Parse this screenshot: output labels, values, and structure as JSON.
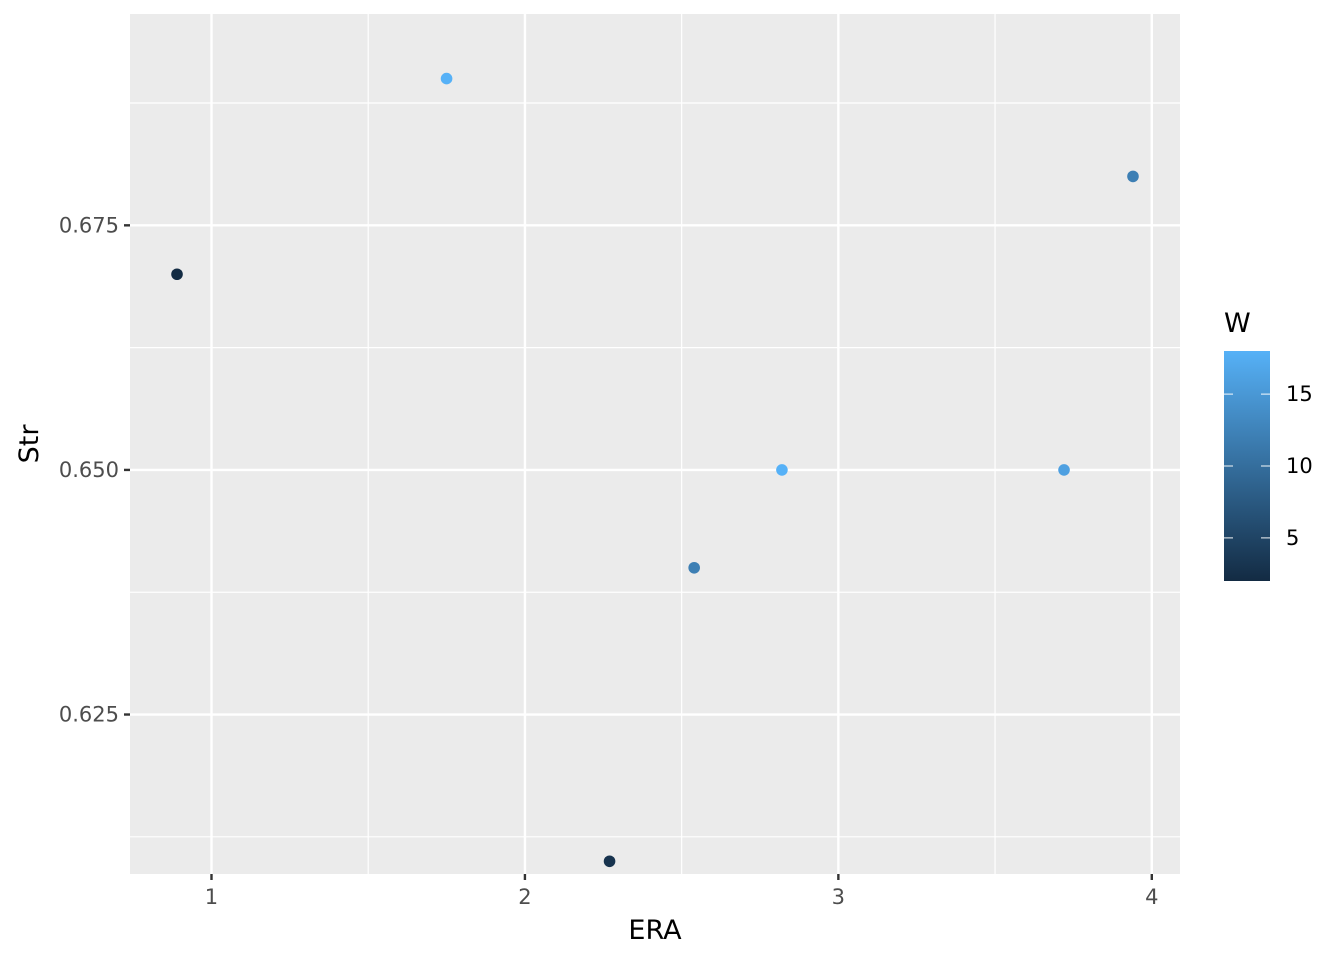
{
  "chart_data": {
    "type": "scatter",
    "title": "",
    "xlabel": "ERA",
    "ylabel": "Str",
    "xlim": [
      0.74,
      4.09
    ],
    "ylim": [
      0.6087,
      0.6966
    ],
    "x_ticks": [
      1,
      2,
      3,
      4
    ],
    "x_tick_labels": [
      "1",
      "2",
      "3",
      "4"
    ],
    "y_ticks": [
      0.625,
      0.65,
      0.675
    ],
    "y_tick_labels": [
      "0.625",
      "0.650",
      "0.675"
    ],
    "grid": true,
    "background": "#ebebeb",
    "gridline_color": "#ffffff",
    "color_variable": "W",
    "color_scale": {
      "low_value": 2,
      "high_value": 18,
      "low_color": "#132b43",
      "high_color": "#56b1f7",
      "ticks": [
        5,
        10,
        15
      ],
      "tick_labels": [
        "5",
        "10",
        "15"
      ]
    },
    "legend_position": "right",
    "points": [
      {
        "x": 0.89,
        "y": 0.67,
        "w": 2
      },
      {
        "x": 1.75,
        "y": 0.69,
        "w": 18
      },
      {
        "x": 2.27,
        "y": 0.61,
        "w": 3
      },
      {
        "x": 2.54,
        "y": 0.64,
        "w": 12
      },
      {
        "x": 2.82,
        "y": 0.65,
        "w": 18
      },
      {
        "x": 3.72,
        "y": 0.65,
        "w": 16
      },
      {
        "x": 3.94,
        "y": 0.68,
        "w": 12
      }
    ]
  }
}
